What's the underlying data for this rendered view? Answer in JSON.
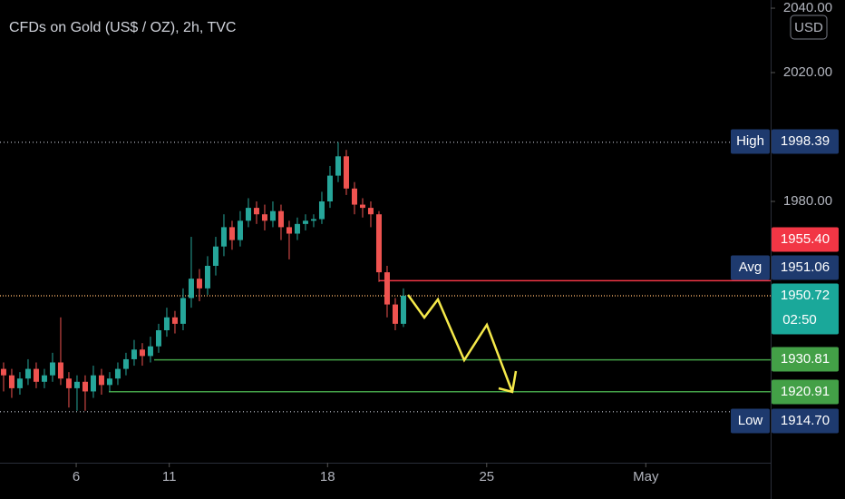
{
  "chart_data": {
    "type": "candlestick",
    "title": "CFDs on Gold (US$ / OZ), 2h, TVC",
    "currency": "USD",
    "categories": [
      null,
      null,
      null,
      null,
      null,
      null,
      null,
      null,
      null,
      null,
      null,
      null,
      null,
      null,
      null,
      null,
      null,
      null,
      null,
      null,
      null,
      null,
      null,
      null,
      null,
      null,
      null,
      null,
      null,
      null,
      null,
      null,
      null,
      null,
      null,
      null,
      null,
      null,
      null,
      null,
      null,
      null,
      null,
      null,
      null,
      null,
      null,
      null,
      null,
      null
    ],
    "open": [
      1928,
      1926,
      1922,
      1925,
      1928,
      1924,
      1926,
      1930,
      1925,
      1922,
      1924,
      1921,
      1926,
      1923,
      1925,
      1928,
      1931,
      1934,
      1932,
      1935,
      1940,
      1944,
      1942,
      1950,
      1956,
      1953,
      1960,
      1966,
      1972,
      1968,
      1974,
      1978,
      1976,
      1974,
      1977,
      1972,
      1970,
      1973,
      1974,
      1974.5,
      1980,
      1988,
      1994,
      1984,
      1979,
      1978,
      1976,
      1958,
      1948,
      1942
    ],
    "high": [
      1930,
      1928,
      1927,
      1931,
      1930,
      1928,
      1933,
      1944,
      1927,
      1926,
      1926,
      1929,
      1928,
      1927,
      1930,
      1933,
      1937,
      1936,
      1938,
      1942,
      1947,
      1946,
      1953,
      1969,
      1959,
      1963,
      1969,
      1976,
      1974,
      1977,
      1981,
      1980,
      1979,
      1980,
      1979,
      1974,
      1975,
      1976,
      1976,
      1983,
      1991,
      1998.39,
      1996,
      1986,
      1981,
      1980,
      1977,
      1960,
      1950,
      1953
    ],
    "low": [
      1921,
      1919,
      1920,
      1923,
      1922,
      1922,
      1924,
      1923,
      1916,
      1915,
      1915,
      1919,
      1920,
      1921,
      1923,
      1926,
      1929,
      1929,
      1930,
      1933,
      1938,
      1939,
      1940,
      1947,
      1949,
      1951,
      1957,
      1963,
      1965,
      1966,
      1972,
      1973,
      1971,
      1972,
      1968,
      1962,
      1968,
      1971,
      1972,
      1973,
      1978,
      1986,
      1982,
      1976,
      1975,
      1972,
      1955,
      1944,
      1940,
      1941
    ],
    "close": [
      1926,
      1922,
      1925,
      1928,
      1924,
      1926,
      1930,
      1925,
      1922,
      1924,
      1921,
      1926,
      1923,
      1925,
      1928,
      1931,
      1934,
      1932,
      1935,
      1940,
      1944,
      1942,
      1950,
      1956,
      1953,
      1960,
      1966,
      1972,
      1968,
      1974,
      1978,
      1976,
      1974,
      1977,
      1972,
      1970,
      1973,
      1974,
      1974.5,
      1980,
      1988,
      1994,
      1984,
      1979,
      1978,
      1976,
      1958,
      1948,
      1942,
      1950.72
    ],
    "up_color": "#26a69a",
    "down_color": "#ef5350",
    "xlim": [
      -0.44,
      94
    ],
    "xticks": [
      {
        "value": 8.9,
        "label": "6"
      },
      {
        "value": 20.3,
        "label": "11"
      },
      {
        "value": 39.7,
        "label": "18"
      },
      {
        "value": 59.2,
        "label": "25"
      },
      {
        "value": 78.7,
        "label": "May"
      }
    ],
    "ylim": [
      1898.87,
      2042.54
    ],
    "yticks": [
      {
        "value": 2040,
        "label": "2040.00"
      },
      {
        "value": 2020,
        "label": "2020.00"
      },
      {
        "value": 1980,
        "label": "1980.00"
      }
    ],
    "levels": {
      "high": {
        "name": "High",
        "value": 1998.39,
        "value_label": "1998.39",
        "color": "#1e3a6e"
      },
      "ask": {
        "value": 1955.4,
        "value_label": "1955.40",
        "color": "#f23645"
      },
      "avg": {
        "name": "Avg",
        "value": 1951.06,
        "value_label": "1951.06",
        "color": "#1e3a6e"
      },
      "last": {
        "value": 1950.72,
        "value_label": "1950.72",
        "countdown": "02:50",
        "color": "#1aa89a"
      },
      "target1": {
        "value": 1930.81,
        "value_label": "1930.81",
        "color": "#43a047"
      },
      "target2": {
        "value": 1920.91,
        "value_label": "1920.91",
        "color": "#43a047"
      },
      "low": {
        "name": "Low",
        "value": 1914.7,
        "value_label": "1914.70",
        "color": "#1e3a6e"
      }
    }
  }
}
